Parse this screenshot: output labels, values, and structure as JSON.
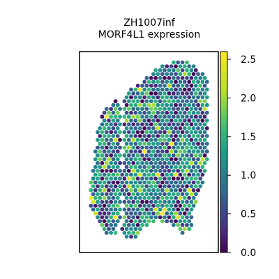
{
  "chart_data": {
    "type": "scatter",
    "title": "ZH1007inf",
    "subtitle": "MORF4L1 expression",
    "colormap": "viridis",
    "colorbar": {
      "ticks": [
        0.0,
        0.5,
        1.0,
        1.5,
        2.0,
        2.5
      ],
      "tick_labels": [
        "0.0",
        "0.5",
        "1.0",
        "1.5",
        "2.0",
        "2.5"
      ],
      "vmin": 0.0,
      "vmax": 2.6
    },
    "axes": {
      "x_ticks": false,
      "y_ticks": false,
      "frame": true
    },
    "spot_summary": "spatial transcriptomics spots on a hexagonal grid, values mostly between 0.5 and 1.5, with scattered high spots near 2.0–2.6",
    "point_count_note": "approximately 700 spots"
  }
}
